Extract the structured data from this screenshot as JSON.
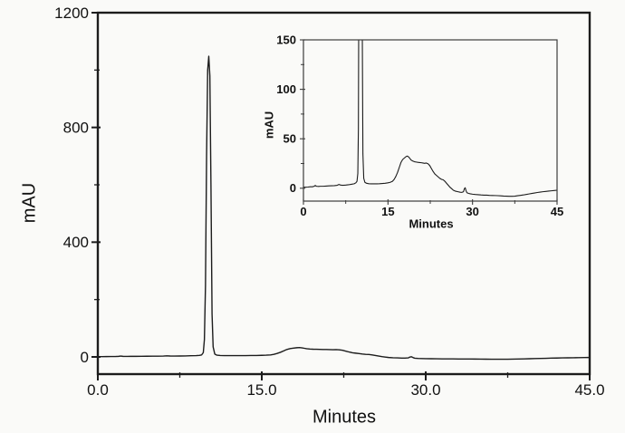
{
  "figure": {
    "background": "#fafaf8",
    "trace_color": "#1c1c1c",
    "frame_color": "#1c1c1c",
    "inset_frame_color": "#3c3c3c",
    "text_color": "#111111"
  },
  "chart_data": {
    "type": "line",
    "description": "HPLC chromatogram trace with zoomed inset of the same data",
    "legend": "none",
    "grid": "off",
    "series": [
      {
        "name": "absorbance-trace",
        "points": [
          [
            0,
            1
          ],
          [
            0.4,
            1
          ],
          [
            0.8,
            1.2
          ],
          [
            1.2,
            1.5
          ],
          [
            1.6,
            1.5
          ],
          [
            1.9,
            2
          ],
          [
            2.1,
            2.8
          ],
          [
            2.3,
            2
          ],
          [
            2.7,
            1.8
          ],
          [
            3,
            2
          ],
          [
            3.5,
            2
          ],
          [
            4,
            2.2
          ],
          [
            4.5,
            2.4
          ],
          [
            5,
            2.5
          ],
          [
            5.5,
            2.6
          ],
          [
            6,
            3
          ],
          [
            6.3,
            3.8
          ],
          [
            6.6,
            3.2
          ],
          [
            7,
            3
          ],
          [
            7.5,
            3.2
          ],
          [
            8,
            3.5
          ],
          [
            8.5,
            4
          ],
          [
            9,
            4.5
          ],
          [
            9.3,
            5.5
          ],
          [
            9.5,
            7
          ],
          [
            9.65,
            15
          ],
          [
            9.75,
            60
          ],
          [
            9.85,
            250
          ],
          [
            9.95,
            700
          ],
          [
            10.05,
            1000
          ],
          [
            10.15,
            1048
          ],
          [
            10.25,
            980
          ],
          [
            10.35,
            600
          ],
          [
            10.45,
            150
          ],
          [
            10.55,
            35
          ],
          [
            10.7,
            10
          ],
          [
            10.9,
            6
          ],
          [
            11.2,
            5
          ],
          [
            11.6,
            4.6
          ],
          [
            12,
            4.5
          ],
          [
            12.5,
            4.5
          ],
          [
            13,
            4.5
          ],
          [
            13.5,
            4.6
          ],
          [
            14,
            4.8
          ],
          [
            14.5,
            5
          ],
          [
            15,
            5.5
          ],
          [
            15.4,
            6
          ],
          [
            15.8,
            7
          ],
          [
            16.1,
            9
          ],
          [
            16.4,
            12
          ],
          [
            16.7,
            16
          ],
          [
            17,
            21
          ],
          [
            17.3,
            26
          ],
          [
            17.6,
            29
          ],
          [
            17.9,
            30.5
          ],
          [
            18.2,
            32
          ],
          [
            18.45,
            32.5
          ],
          [
            18.7,
            31.5
          ],
          [
            18.9,
            30
          ],
          [
            19.1,
            28.5
          ],
          [
            19.4,
            27.5
          ],
          [
            19.7,
            26.8
          ],
          [
            20,
            26.5
          ],
          [
            20.3,
            26.2
          ],
          [
            20.6,
            26
          ],
          [
            20.9,
            25.8
          ],
          [
            21.2,
            25.5
          ],
          [
            21.5,
            25.2
          ],
          [
            21.8,
            25.5
          ],
          [
            22.1,
            24.8
          ],
          [
            22.4,
            23
          ],
          [
            22.7,
            20
          ],
          [
            23,
            17
          ],
          [
            23.3,
            14.5
          ],
          [
            23.6,
            13
          ],
          [
            23.9,
            11.5
          ],
          [
            24.2,
            10
          ],
          [
            24.5,
            9
          ],
          [
            24.8,
            8.5
          ],
          [
            25.1,
            7
          ],
          [
            25.4,
            5
          ],
          [
            25.7,
            3
          ],
          [
            26,
            1
          ],
          [
            26.3,
            -0.5
          ],
          [
            26.6,
            -2
          ],
          [
            27,
            -3
          ],
          [
            27.4,
            -3.5
          ],
          [
            27.8,
            -4
          ],
          [
            28.1,
            -4.2
          ],
          [
            28.4,
            -3.5
          ],
          [
            28.55,
            -0.5
          ],
          [
            28.7,
            0.5
          ],
          [
            28.85,
            -2.5
          ],
          [
            29,
            -4.5
          ],
          [
            29.3,
            -5.2
          ],
          [
            29.6,
            -5.6
          ],
          [
            30,
            -6
          ],
          [
            30.5,
            -6.3
          ],
          [
            31,
            -6.5
          ],
          [
            31.5,
            -6.8
          ],
          [
            32,
            -7
          ],
          [
            32.5,
            -7
          ],
          [
            33,
            -7.2
          ],
          [
            33.5,
            -7.3
          ],
          [
            34,
            -7.4
          ],
          [
            34.5,
            -7.5
          ],
          [
            35,
            -7.7
          ],
          [
            35.5,
            -7.9
          ],
          [
            36,
            -8
          ],
          [
            36.5,
            -8.1
          ],
          [
            37,
            -8.1
          ],
          [
            37.5,
            -8
          ],
          [
            38,
            -7.6
          ],
          [
            38.5,
            -7.2
          ],
          [
            39,
            -6.8
          ],
          [
            39.5,
            -6.3
          ],
          [
            40,
            -5.8
          ],
          [
            40.5,
            -5.3
          ],
          [
            41,
            -4.8
          ],
          [
            41.5,
            -4.3
          ],
          [
            42,
            -3.9
          ],
          [
            42.5,
            -3.5
          ],
          [
            43,
            -3.2
          ],
          [
            43.5,
            -2.9
          ],
          [
            44,
            -2.6
          ],
          [
            44.5,
            -2.3
          ],
          [
            45,
            -2
          ]
        ]
      }
    ],
    "main_plot": {
      "xlabel": "Minutes",
      "ylabel": "mAU",
      "xlim": [
        0,
        45
      ],
      "ylim": [
        -60,
        1200
      ],
      "x_ticks": {
        "major": [
          {
            "value": 0,
            "label": "0.0"
          },
          {
            "value": 15,
            "label": "15.0"
          },
          {
            "value": 30,
            "label": "30.0"
          },
          {
            "value": 45,
            "label": "45.0"
          }
        ],
        "minor": [
          7.5,
          22.5,
          37.5
        ]
      },
      "y_ticks": {
        "major": [
          {
            "value": 0,
            "label": "0"
          },
          {
            "value": 400,
            "label": "400"
          },
          {
            "value": 800,
            "label": "800"
          },
          {
            "value": 1200,
            "label": "1200"
          }
        ],
        "minor": [
          200,
          600,
          1000
        ]
      }
    },
    "inset_plot": {
      "xlabel": "Minutes",
      "ylabel": "mAU",
      "xlim": [
        0,
        45
      ],
      "ylim": [
        -13,
        150
      ],
      "x_ticks": {
        "major": [
          {
            "value": 0,
            "label": "0"
          },
          {
            "value": 15,
            "label": "15"
          },
          {
            "value": 30,
            "label": "30"
          },
          {
            "value": 45,
            "label": "45"
          }
        ],
        "minor": [
          7.5,
          22.5,
          37.5
        ]
      },
      "y_ticks": {
        "major": [
          {
            "value": 0,
            "label": "0"
          },
          {
            "value": 50,
            "label": "50"
          },
          {
            "value": 100,
            "label": "100"
          },
          {
            "value": 150,
            "label": "150"
          }
        ],
        "minor": [
          25,
          75,
          125
        ]
      }
    }
  }
}
